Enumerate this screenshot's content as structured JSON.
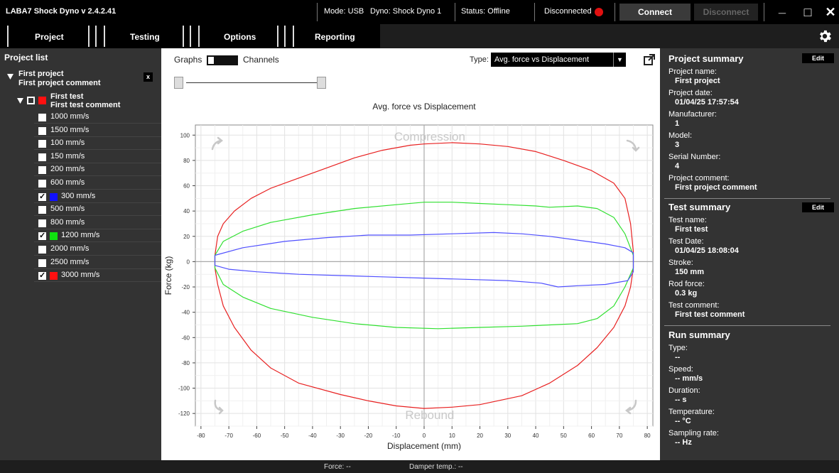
{
  "titlebar": {
    "app_title": "LABA7 Shock Dyno v 2.4.2.41",
    "mode": "Mode: USB",
    "dyno": "Dyno: Shock Dyno 1",
    "status": "Status: Offline",
    "connection": "Disconnected",
    "connect_label": "Connect",
    "disconnect_label": "Disconnect",
    "minimize": "_",
    "maximize": "□",
    "close": "✕"
  },
  "menu": {
    "items": [
      "Project",
      "Testing",
      "Options",
      "Reporting"
    ]
  },
  "left": {
    "title": "Project list",
    "project_name": "First project",
    "project_comment": "First project comment",
    "close_label": "x",
    "test_name": "First test",
    "test_comment": "First test comment",
    "runs": [
      {
        "label": "1000 mm/s",
        "checked": false,
        "color": ""
      },
      {
        "label": "1500 mm/s",
        "checked": false,
        "color": ""
      },
      {
        "label": "100 mm/s",
        "checked": false,
        "color": ""
      },
      {
        "label": "150 mm/s",
        "checked": false,
        "color": ""
      },
      {
        "label": "200 mm/s",
        "checked": false,
        "color": ""
      },
      {
        "label": "600 mm/s",
        "checked": false,
        "color": ""
      },
      {
        "label": "300 mm/s",
        "checked": true,
        "color": "#1010ff"
      },
      {
        "label": "500 mm/s",
        "checked": false,
        "color": ""
      },
      {
        "label": "800 mm/s",
        "checked": false,
        "color": ""
      },
      {
        "label": "1200 mm/s",
        "checked": true,
        "color": "#10e010"
      },
      {
        "label": "2000 mm/s",
        "checked": false,
        "color": ""
      },
      {
        "label": "2500 mm/s",
        "checked": false,
        "color": ""
      },
      {
        "label": "3000 mm/s",
        "checked": true,
        "color": "#ff1010"
      }
    ]
  },
  "center": {
    "graphs_label": "Graphs",
    "channels_label": "Channels",
    "type_label": "Type:",
    "type_value": "Avg. force vs Displacement"
  },
  "chart_data": {
    "type": "line",
    "title": "Avg. force vs Displacement",
    "xlabel": "Displacement (mm)",
    "ylabel": "Force (kg)",
    "xlim": [
      -82,
      82
    ],
    "ylim": [
      -130,
      108
    ],
    "xticks": [
      -80,
      -70,
      -60,
      -50,
      -40,
      -30,
      -20,
      -10,
      0,
      10,
      20,
      30,
      40,
      50,
      60,
      70,
      80
    ],
    "yticks": [
      -120,
      -100,
      -80,
      -60,
      -40,
      -20,
      0,
      20,
      40,
      60,
      80,
      100
    ],
    "annotations": {
      "top": "Compression",
      "bottom": "Rebound"
    },
    "grid": true,
    "series": [
      {
        "color": "#e82020",
        "points": [
          [
            -75,
            5
          ],
          [
            -74,
            20
          ],
          [
            -72,
            30
          ],
          [
            -68,
            40
          ],
          [
            -62,
            50
          ],
          [
            -55,
            58
          ],
          [
            -45,
            66
          ],
          [
            -35,
            74
          ],
          [
            -25,
            82
          ],
          [
            -15,
            88
          ],
          [
            -5,
            92
          ],
          [
            0,
            93
          ],
          [
            10,
            94
          ],
          [
            20,
            93
          ],
          [
            30,
            91
          ],
          [
            40,
            87
          ],
          [
            50,
            80
          ],
          [
            60,
            72
          ],
          [
            68,
            62
          ],
          [
            72,
            50
          ],
          [
            74,
            30
          ],
          [
            75,
            8
          ],
          [
            75,
            -5
          ],
          [
            74,
            -20
          ],
          [
            72,
            -35
          ],
          [
            68,
            -52
          ],
          [
            62,
            -68
          ],
          [
            55,
            -82
          ],
          [
            45,
            -96
          ],
          [
            35,
            -106
          ],
          [
            20,
            -113
          ],
          [
            10,
            -115
          ],
          [
            0,
            -116
          ],
          [
            -10,
            -114
          ],
          [
            -20,
            -110
          ],
          [
            -30,
            -105
          ],
          [
            -45,
            -96
          ],
          [
            -55,
            -84
          ],
          [
            -62,
            -70
          ],
          [
            -68,
            -52
          ],
          [
            -72,
            -35
          ],
          [
            -74,
            -18
          ],
          [
            -75,
            -5
          ],
          [
            -75,
            5
          ]
        ]
      },
      {
        "color": "#30e030",
        "points": [
          [
            -75,
            5
          ],
          [
            -72,
            16
          ],
          [
            -65,
            24
          ],
          [
            -55,
            31
          ],
          [
            -40,
            37
          ],
          [
            -25,
            42
          ],
          [
            -10,
            45
          ],
          [
            0,
            47
          ],
          [
            10,
            47
          ],
          [
            20,
            46
          ],
          [
            30,
            45
          ],
          [
            40,
            44
          ],
          [
            45,
            43
          ],
          [
            55,
            44
          ],
          [
            62,
            42
          ],
          [
            68,
            35
          ],
          [
            72,
            22
          ],
          [
            75,
            5
          ],
          [
            75,
            -5
          ],
          [
            72,
            -20
          ],
          [
            68,
            -35
          ],
          [
            62,
            -45
          ],
          [
            55,
            -49
          ],
          [
            45,
            -50
          ],
          [
            35,
            -51
          ],
          [
            20,
            -52
          ],
          [
            5,
            -53
          ],
          [
            -10,
            -52
          ],
          [
            -25,
            -49
          ],
          [
            -40,
            -44
          ],
          [
            -55,
            -37
          ],
          [
            -65,
            -28
          ],
          [
            -72,
            -18
          ],
          [
            -75,
            -5
          ],
          [
            -75,
            5
          ]
        ]
      },
      {
        "color": "#5050ff",
        "points": [
          [
            -75,
            5
          ],
          [
            -65,
            11
          ],
          [
            -50,
            16
          ],
          [
            -35,
            19
          ],
          [
            -20,
            21
          ],
          [
            -5,
            21
          ],
          [
            10,
            22
          ],
          [
            25,
            23
          ],
          [
            35,
            22
          ],
          [
            45,
            20
          ],
          [
            55,
            17
          ],
          [
            65,
            14
          ],
          [
            72,
            11
          ],
          [
            75,
            7
          ],
          [
            75,
            -8
          ],
          [
            73,
            -15
          ],
          [
            65,
            -18
          ],
          [
            55,
            -19
          ],
          [
            48,
            -20
          ],
          [
            42,
            -17
          ],
          [
            30,
            -15
          ],
          [
            15,
            -14
          ],
          [
            0,
            -13
          ],
          [
            -15,
            -12
          ],
          [
            -30,
            -11
          ],
          [
            -45,
            -10
          ],
          [
            -60,
            -8
          ],
          [
            -70,
            -6
          ],
          [
            -75,
            -3
          ],
          [
            -75,
            5
          ]
        ]
      }
    ]
  },
  "right": {
    "project_summary": {
      "title": "Project summary",
      "edit": "Edit",
      "fields": [
        {
          "key": "Project name:",
          "value": "First project"
        },
        {
          "key": "Project date:",
          "value": "01/04/25 17:57:54"
        },
        {
          "key": "Manufacturer:",
          "value": "1"
        },
        {
          "key": "Model:",
          "value": "3"
        },
        {
          "key": "Serial Number:",
          "value": "4"
        },
        {
          "key": "Project comment:",
          "value": "First project comment"
        }
      ]
    },
    "test_summary": {
      "title": "Test summary",
      "edit": "Edit",
      "fields": [
        {
          "key": "Test name:",
          "value": "First test"
        },
        {
          "key": "Test Date:",
          "value": "01/04/25 18:08:04"
        },
        {
          "key": "Stroke:",
          "value": "150 mm"
        },
        {
          "key": "Rod force:",
          "value": "0.3 kg"
        },
        {
          "key": "Test comment:",
          "value": "First test comment"
        }
      ]
    },
    "run_summary": {
      "title": "Run summary",
      "fields": [
        {
          "key": "Type:",
          "value": "--"
        },
        {
          "key": "Speed:",
          "value": "-- mm/s"
        },
        {
          "key": "Duration:",
          "value": "-- s"
        },
        {
          "key": "Temperature:",
          "value": "-- °C"
        },
        {
          "key": "Sampling rate:",
          "value": "-- Hz"
        }
      ]
    }
  },
  "footer": {
    "force": "Force:  --",
    "damper_temp": "Damper temp.:  --"
  },
  "colors": {
    "status_disconnected": "#e01010",
    "panel_bg": "#333333",
    "bar_bg": "#000000"
  }
}
